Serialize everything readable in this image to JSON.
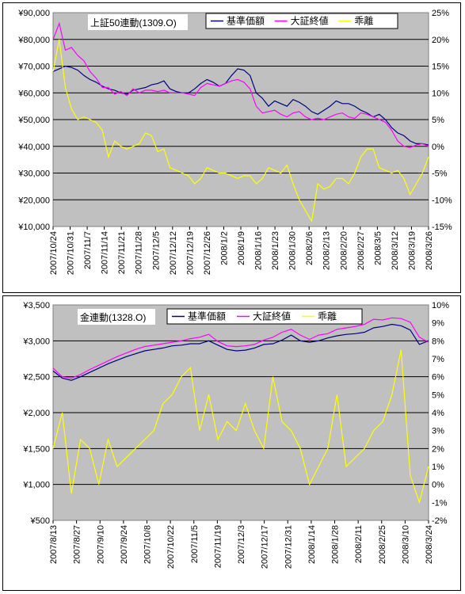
{
  "chart_data": [
    {
      "type": "line",
      "title": "上証50連動(1309.O)",
      "legend": {
        "placement": "top-right",
        "entries": [
          "基準価額",
          "大証終値",
          "乖離"
        ]
      },
      "y_left": {
        "ticks": [
          "¥90,000",
          "¥80,000",
          "¥70,000",
          "¥60,000",
          "¥50,000",
          "¥40,000",
          "¥30,000",
          "¥20,000",
          "¥10,000"
        ],
        "range": [
          10000,
          90000
        ]
      },
      "y_right": {
        "ticks": [
          "25%",
          "20%",
          "15%",
          "10%",
          "5%",
          "0%",
          "-5%",
          "-10%",
          "-15%"
        ],
        "range": [
          -15,
          25
        ]
      },
      "x_ticks": [
        "2007/10/24",
        "2007/10/31",
        "2007/11/7",
        "2007/11/14",
        "2007/11/21",
        "2007/11/28",
        "2007/12/5",
        "2007/12/12",
        "2007/12/19",
        "2007/12/26",
        "2008/1/2",
        "2008/1/9",
        "2008/1/16",
        "2008/1/23",
        "2008/1/30",
        "2008/2/6",
        "2008/2/13",
        "2008/2/20",
        "2008/2/27",
        "2008/3/5",
        "2008/3/12",
        "2008/3/19",
        "2008/3/26"
      ],
      "series": [
        {
          "name": "基準価額",
          "color": "#000080",
          "axis": "left",
          "values": [
            68000,
            69000,
            70000,
            69500,
            68500,
            66500,
            65000,
            64000,
            62500,
            61500,
            61000,
            60000,
            59500,
            61000,
            61500,
            62000,
            63000,
            63500,
            64500,
            61500,
            60500,
            60000,
            60000,
            61500,
            63500,
            65000,
            64000,
            62500,
            63500,
            66500,
            69000,
            68500,
            66500,
            60000,
            58000,
            55000,
            57000,
            56000,
            55000,
            57500,
            56500,
            55000,
            53000,
            52000,
            53500,
            55000,
            57000,
            56000,
            56000,
            55000,
            53500,
            52500,
            51000,
            52000,
            50000,
            47000,
            45000,
            44000,
            42000,
            41000,
            41000,
            40500
          ]
        },
        {
          "name": "大証終値",
          "color": "#ff00ff",
          "axis": "left",
          "values": [
            80000,
            86000,
            76000,
            77000,
            74000,
            72000,
            68000,
            65500,
            62000,
            62000,
            59500,
            60500,
            59000,
            61500,
            60000,
            61000,
            61000,
            60500,
            61000,
            60000,
            60000,
            60000,
            59500,
            59000,
            62000,
            63500,
            63000,
            62500,
            63500,
            64500,
            65000,
            64000,
            61500,
            55000,
            52500,
            53000,
            53500,
            52000,
            51000,
            52500,
            53000,
            51000,
            50000,
            50500,
            50000,
            51000,
            52000,
            52500,
            51000,
            50500,
            52500,
            52000,
            51000,
            50000,
            49000,
            46000,
            42000,
            40000,
            39500,
            40500,
            41000,
            40000
          ]
        },
        {
          "name": "乖離",
          "color": "#ffff00",
          "axis": "right",
          "values": [
            14,
            20,
            11,
            7,
            5,
            5.5,
            5,
            4.5,
            3,
            -2,
            1,
            0,
            -0.5,
            0,
            0.5,
            2.5,
            2,
            -1,
            -0.5,
            -4,
            -4.5,
            -5,
            -5.5,
            -7,
            -6,
            -4,
            -4.5,
            -5,
            -5,
            -5.5,
            -6,
            -5.5,
            -5.5,
            -7,
            -6,
            -4,
            -4.5,
            -5,
            -3.5,
            -7,
            -10,
            -12,
            -14,
            -7,
            -8,
            -7.5,
            -6,
            -6,
            -7,
            -5,
            -2,
            -0.5,
            -0.5,
            -4,
            -4.5,
            -5,
            -4.5,
            -6,
            -9,
            -7,
            -5,
            -2
          ]
        }
      ]
    },
    {
      "type": "line",
      "title": "金連動(1328.O)",
      "legend": {
        "placement": "top-right",
        "entries": [
          "基準価額",
          "大証終値",
          "乖離"
        ]
      },
      "y_left": {
        "ticks": [
          "¥3,500",
          "¥3,000",
          "¥2,500",
          "¥2,000",
          "¥1,500",
          "¥1,000",
          "¥500"
        ],
        "range": [
          500,
          3500
        ]
      },
      "y_right": {
        "ticks": [
          "10%",
          "9%",
          "8%",
          "7%",
          "6%",
          "5%",
          "4%",
          "3%",
          "2%",
          "1%",
          "0%",
          "-1%",
          "-2%"
        ],
        "range": [
          -2,
          10
        ]
      },
      "x_ticks": [
        "2007/8/13",
        "2007/8/27",
        "2007/9/10",
        "2007/9/24",
        "2007/10/8",
        "2007/10/22",
        "2007/11/5",
        "2007/11/19",
        "2007/12/3",
        "2007/12/17",
        "2007/12/31",
        "2008/1/14",
        "2008/1/28",
        "2008/2/11",
        "2008/2/25",
        "2008/3/10",
        "2008/3/24"
      ],
      "series": [
        {
          "name": "基準価額",
          "color": "#000080",
          "axis": "left",
          "values": [
            2580,
            2480,
            2450,
            2500,
            2560,
            2620,
            2680,
            2730,
            2780,
            2820,
            2860,
            2880,
            2900,
            2930,
            2940,
            2960,
            2960,
            3000,
            2940,
            2880,
            2860,
            2870,
            2900,
            2950,
            2960,
            3010,
            3080,
            3000,
            2980,
            3000,
            3040,
            3070,
            3090,
            3100,
            3120,
            3180,
            3200,
            3230,
            3210,
            3150,
            2950,
            3000
          ]
        },
        {
          "name": "大証終値",
          "color": "#ff00ff",
          "axis": "left",
          "values": [
            2620,
            2500,
            2480,
            2530,
            2600,
            2660,
            2720,
            2780,
            2830,
            2880,
            2920,
            2940,
            2960,
            2980,
            3000,
            3030,
            3050,
            3090,
            2990,
            2930,
            2920,
            2930,
            2950,
            3010,
            3050,
            3120,
            3160,
            3080,
            3020,
            3080,
            3100,
            3160,
            3180,
            3200,
            3230,
            3300,
            3290,
            3320,
            3310,
            3260,
            3050,
            2980
          ]
        },
        {
          "name": "乖離",
          "color": "#ffff00",
          "axis": "right",
          "values": [
            2,
            4,
            -0.5,
            2.5,
            2,
            0,
            2.5,
            1,
            1.5,
            2,
            2.5,
            3,
            4.5,
            5,
            6,
            6.5,
            3,
            5,
            2.5,
            3.5,
            3,
            4.5,
            3,
            2,
            6,
            3.5,
            3,
            2,
            0,
            1,
            2,
            5,
            1,
            1.5,
            2,
            3,
            3.5,
            5,
            7.5,
            0.5,
            -1,
            1
          ]
        }
      ]
    }
  ]
}
